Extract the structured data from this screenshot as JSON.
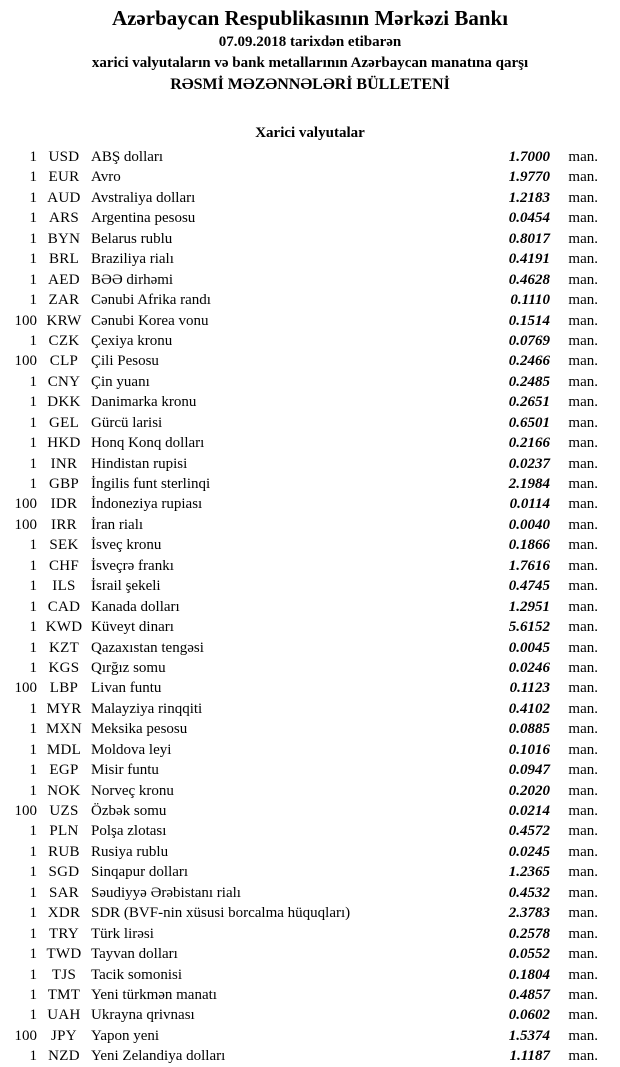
{
  "header": {
    "bank_name": "Azərbaycan Respublikasının Mərkəzi Bankı",
    "date_line": "07.09.2018 tarixdən etibarən",
    "subject_line": "xarici valyutaların və bank metallarının Azərbaycan manatına qarşı",
    "bulletin_title": "RƏSMİ MƏZƏNNƏLƏRİ BÜLLETENİ"
  },
  "section_title": "Xarici valyutalar",
  "unit_label": "man.",
  "rates": [
    {
      "qty": "1",
      "code": "USD",
      "name": "ABŞ dolları",
      "rate": "1.7000"
    },
    {
      "qty": "1",
      "code": "EUR",
      "name": "Avro",
      "rate": "1.9770"
    },
    {
      "qty": "1",
      "code": "AUD",
      "name": "Avstraliya dolları",
      "rate": "1.2183"
    },
    {
      "qty": "1",
      "code": "ARS",
      "name": "Argentina pesosu",
      "rate": "0.0454"
    },
    {
      "qty": "1",
      "code": "BYN",
      "name": "Belarus rublu",
      "rate": "0.8017"
    },
    {
      "qty": "1",
      "code": "BRL",
      "name": "Braziliya rialı",
      "rate": "0.4191"
    },
    {
      "qty": "1",
      "code": "AED",
      "name": "BƏƏ dirhəmi",
      "rate": "0.4628"
    },
    {
      "qty": "1",
      "code": "ZAR",
      "name": "Cənubi Afrika randı",
      "rate": "0.1110"
    },
    {
      "qty": "100",
      "code": "KRW",
      "name": "Cənubi Korea vonu",
      "rate": "0.1514"
    },
    {
      "qty": "1",
      "code": "CZK",
      "name": "Çexiya kronu",
      "rate": "0.0769"
    },
    {
      "qty": "100",
      "code": "CLP",
      "name": "Çili Pesosu",
      "rate": "0.2466"
    },
    {
      "qty": "1",
      "code": "CNY",
      "name": "Çin yuanı",
      "rate": "0.2485"
    },
    {
      "qty": "1",
      "code": "DKK",
      "name": "Danimarka kronu",
      "rate": "0.2651"
    },
    {
      "qty": "1",
      "code": "GEL",
      "name": "Gürcü larisi",
      "rate": "0.6501"
    },
    {
      "qty": "1",
      "code": "HKD",
      "name": "Honq Konq dolları",
      "rate": "0.2166"
    },
    {
      "qty": "1",
      "code": "INR",
      "name": "Hindistan rupisi",
      "rate": "0.0237"
    },
    {
      "qty": "1",
      "code": "GBP",
      "name": "İngilis funt sterlinqi",
      "rate": "2.1984"
    },
    {
      "qty": "100",
      "code": "IDR",
      "name": "İndoneziya rupiası",
      "rate": "0.0114"
    },
    {
      "qty": "100",
      "code": "IRR",
      "name": "İran rialı",
      "rate": "0.0040"
    },
    {
      "qty": "1",
      "code": "SEK",
      "name": "İsveç kronu",
      "rate": "0.1866"
    },
    {
      "qty": "1",
      "code": "CHF",
      "name": "İsveçrə frankı",
      "rate": "1.7616"
    },
    {
      "qty": "1",
      "code": "ILS",
      "name": "İsrail şekeli",
      "rate": "0.4745"
    },
    {
      "qty": "1",
      "code": "CAD",
      "name": "Kanada dolları",
      "rate": "1.2951"
    },
    {
      "qty": "1",
      "code": "KWD",
      "name": "Küveyt dinarı",
      "rate": "5.6152"
    },
    {
      "qty": "1",
      "code": "KZT",
      "name": "Qazaxıstan tengəsi",
      "rate": "0.0045"
    },
    {
      "qty": "1",
      "code": "KGS",
      "name": "Qırğız somu",
      "rate": "0.0246"
    },
    {
      "qty": "100",
      "code": "LBP",
      "name": "Livan funtu",
      "rate": "0.1123"
    },
    {
      "qty": "1",
      "code": "MYR",
      "name": "Malayziya rinqqiti",
      "rate": "0.4102"
    },
    {
      "qty": "1",
      "code": "MXN",
      "name": "Meksika pesosu",
      "rate": "0.0885"
    },
    {
      "qty": "1",
      "code": "MDL",
      "name": "Moldova leyi",
      "rate": "0.1016"
    },
    {
      "qty": "1",
      "code": "EGP",
      "name": "Misir funtu",
      "rate": "0.0947"
    },
    {
      "qty": "1",
      "code": "NOK",
      "name": "Norveç kronu",
      "rate": "0.2020"
    },
    {
      "qty": "100",
      "code": "UZS",
      "name": "Özbək somu",
      "rate": "0.0214"
    },
    {
      "qty": "1",
      "code": "PLN",
      "name": "Polşa zlotası",
      "rate": "0.4572"
    },
    {
      "qty": "1",
      "code": "RUB",
      "name": "Rusiya rublu",
      "rate": "0.0245"
    },
    {
      "qty": "1",
      "code": "SGD",
      "name": "Sinqapur dolları",
      "rate": "1.2365"
    },
    {
      "qty": "1",
      "code": "SAR",
      "name": "Səudiyyə Ərəbistanı rialı",
      "rate": "0.4532"
    },
    {
      "qty": "1",
      "code": "XDR",
      "name": "SDR (BVF-nin xüsusi borcalma hüquqları)",
      "rate": "2.3783"
    },
    {
      "qty": "1",
      "code": "TRY",
      "name": "Türk lirəsi",
      "rate": "0.2578"
    },
    {
      "qty": "1",
      "code": "TWD",
      "name": "Tayvan dolları",
      "rate": "0.0552"
    },
    {
      "qty": "1",
      "code": "TJS",
      "name": "Tacik somonisi",
      "rate": "0.1804"
    },
    {
      "qty": "1",
      "code": "TMT",
      "name": "Yeni türkmən manatı",
      "rate": "0.4857"
    },
    {
      "qty": "1",
      "code": "UAH",
      "name": "Ukrayna qrivnası",
      "rate": "0.0602"
    },
    {
      "qty": "100",
      "code": "JPY",
      "name": "Yapon yeni",
      "rate": "1.5374"
    },
    {
      "qty": "1",
      "code": "NZD",
      "name": "Yeni Zelandiya dolları",
      "rate": "1.1187"
    }
  ]
}
